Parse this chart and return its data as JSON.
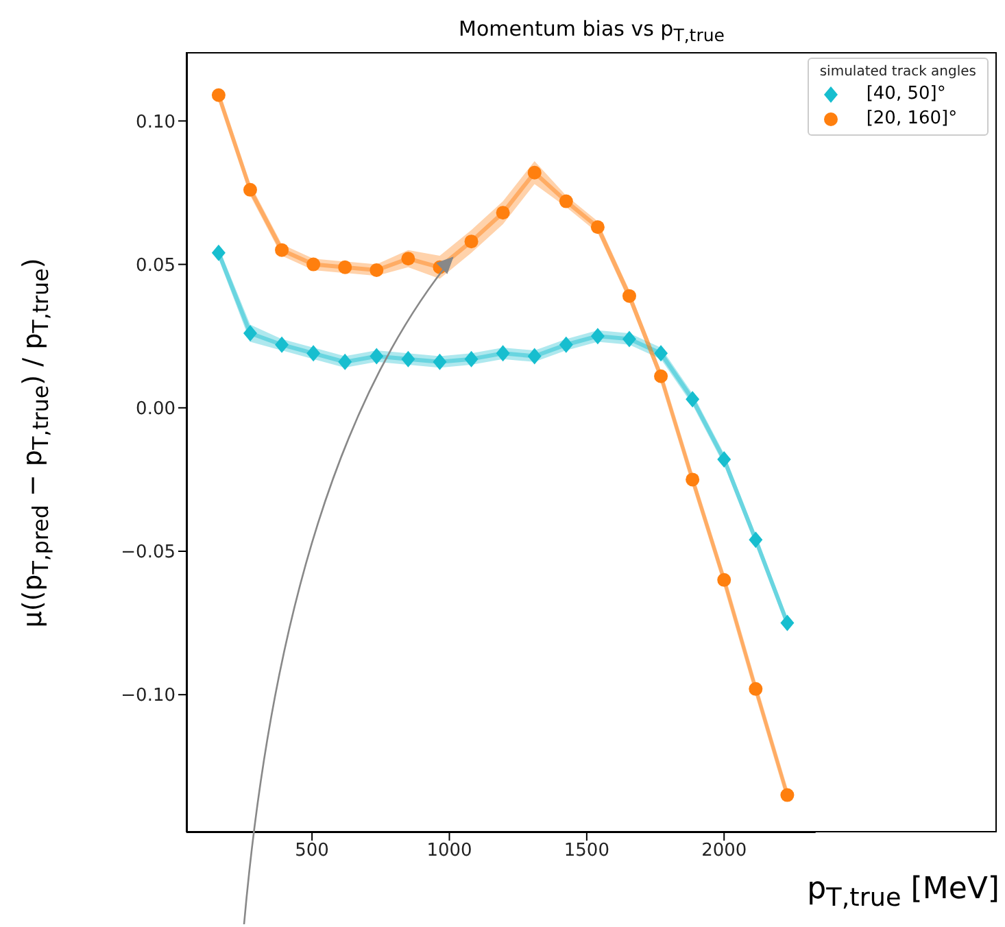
{
  "chart_data": {
    "type": "line",
    "title": "Momentum bias vs p$_{T,true}$",
    "xlabel": "p$_{T,true}$ [MeV]",
    "ylabel": "μ((p$_{T,pred}$ − p$_{T,true}$) / p$_{T,true}$)",
    "legend_title": "simulated track angles",
    "legend": "top right",
    "x": [
      160,
      275,
      390,
      505,
      620,
      735,
      850,
      965,
      1080,
      1195,
      1310,
      1425,
      1540,
      1655,
      1770,
      1885,
      2000,
      2115,
      2230
    ],
    "xlim": [
      43,
      2333
    ],
    "xticks": [
      500,
      1000,
      1500,
      2000
    ],
    "ylim": [
      -0.148,
      0.124
    ],
    "yticks": [
      {
        "value": -0.1,
        "label": "−0.10"
      },
      {
        "value": -0.05,
        "label": "−0.05"
      },
      {
        "value": 0,
        "label": "0.00"
      },
      {
        "value": 0.05,
        "label": "0.05"
      },
      {
        "value": 0.1,
        "label": "0.10"
      }
    ],
    "series": [
      {
        "name": "[40, 50]°",
        "color": "#17becf",
        "marker": "diamond",
        "values": [
          0.054,
          0.026,
          0.022,
          0.019,
          0.016,
          0.018,
          0.017,
          0.016,
          0.017,
          0.019,
          0.018,
          0.022,
          0.025,
          0.024,
          0.019,
          0.003,
          -0.018,
          -0.046,
          -0.075
        ],
        "lower": [
          0.052,
          0.023,
          0.02,
          0.017,
          0.014,
          0.016,
          0.015,
          0.014,
          0.015,
          0.017,
          0.016,
          0.02,
          0.023,
          0.022,
          0.017,
          0.001,
          -0.02,
          -0.048,
          -0.077
        ],
        "upper": [
          0.056,
          0.029,
          0.024,
          0.021,
          0.018,
          0.02,
          0.019,
          0.018,
          0.019,
          0.021,
          0.02,
          0.024,
          0.027,
          0.026,
          0.021,
          0.005,
          -0.016,
          -0.044,
          -0.073
        ]
      },
      {
        "name": "[20, 160]°",
        "color": "#ff7f0e",
        "marker": "circle",
        "values": [
          0.109,
          0.076,
          0.055,
          0.05,
          0.049,
          0.048,
          0.052,
          0.049,
          0.058,
          0.068,
          0.082,
          0.072,
          0.063,
          0.039,
          0.011,
          -0.025,
          -0.06,
          -0.098,
          -0.135
        ],
        "lower": [
          0.107,
          0.074,
          0.053,
          0.048,
          0.047,
          0.046,
          0.049,
          0.045,
          0.054,
          0.064,
          0.078,
          0.07,
          0.061,
          0.037,
          0.009,
          -0.027,
          -0.062,
          -0.1,
          -0.137
        ],
        "upper": [
          0.111,
          0.078,
          0.057,
          0.052,
          0.051,
          0.05,
          0.055,
          0.053,
          0.062,
          0.072,
          0.086,
          0.074,
          0.065,
          0.041,
          0.013,
          -0.023,
          -0.058,
          -0.096,
          -0.133
        ]
      }
    ]
  }
}
